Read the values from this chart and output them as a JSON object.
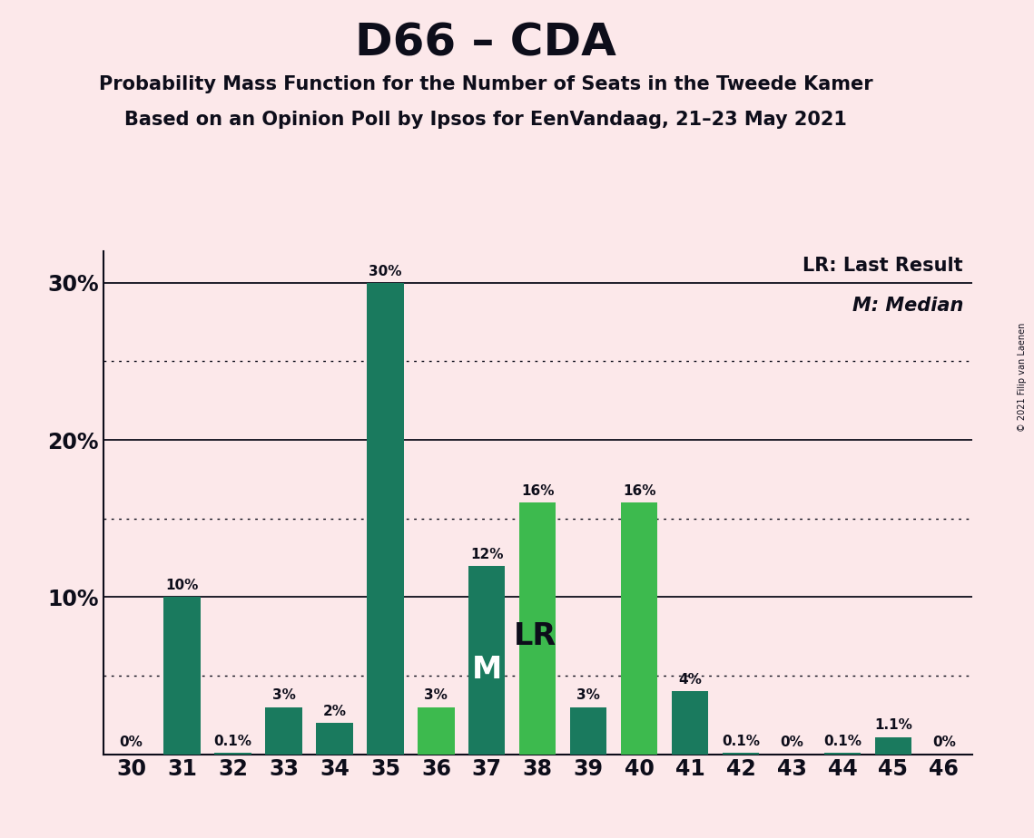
{
  "title": "D66 – CDA",
  "subtitle1": "Probability Mass Function for the Number of Seats in the Tweede Kamer",
  "subtitle2": "Based on an Opinion Poll by Ipsos for EenVandaag, 21–23 May 2021",
  "copyright": "© 2021 Filip van Laenen",
  "categories": [
    30,
    31,
    32,
    33,
    34,
    35,
    36,
    37,
    38,
    39,
    40,
    41,
    42,
    43,
    44,
    45,
    46
  ],
  "values": [
    0.0,
    10.0,
    0.1,
    3.0,
    2.0,
    30.0,
    3.0,
    12.0,
    16.0,
    3.0,
    16.0,
    4.0,
    0.1,
    0.0,
    0.1,
    1.1,
    0.0
  ],
  "labels": [
    "0%",
    "10%",
    "0.1%",
    "3%",
    "2%",
    "30%",
    "3%",
    "12%",
    "16%",
    "3%",
    "16%",
    "4%",
    "0.1%",
    "0%",
    "0.1%",
    "1.1%",
    "0%"
  ],
  "bar_colors": [
    "#1a7a5e",
    "#1a7a5e",
    "#1a7a5e",
    "#1a7a5e",
    "#1a7a5e",
    "#1a7a5e",
    "#3dba4e",
    "#1a7a5e",
    "#3dba4e",
    "#1a7a5e",
    "#3dba4e",
    "#1a7a5e",
    "#1a7a5e",
    "#1a7a5e",
    "#1a7a5e",
    "#1a7a5e",
    "#1a7a5e"
  ],
  "median_bar_idx": 7,
  "lr_bar_idx": 8,
  "ylim_max": 32,
  "solid_yticks": [
    10,
    20,
    30
  ],
  "dotted_yticks": [
    5,
    15,
    25
  ],
  "ytick_labels": [
    "10%",
    "20%",
    "30%"
  ],
  "background_color": "#fce8ea",
  "text_color": "#0d0d1a",
  "legend_lr": "LR: Last Result",
  "legend_m": "M: Median",
  "title_fontsize": 36,
  "subtitle_fontsize": 15,
  "tick_fontsize": 17,
  "label_fontsize": 11,
  "inside_label_fontsize": 24
}
